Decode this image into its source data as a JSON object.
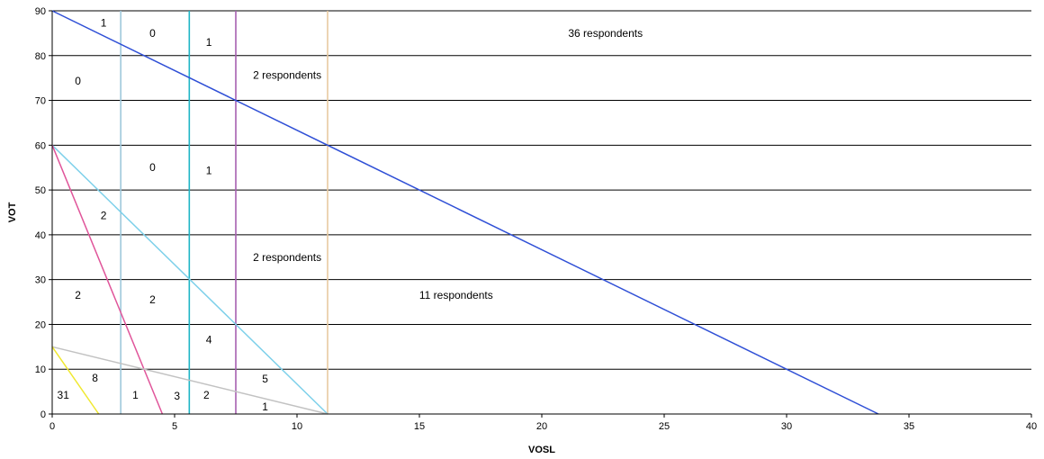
{
  "chart_data": {
    "type": "line",
    "title": "",
    "xlabel": "VOSL",
    "ylabel": "VOT",
    "xlim": [
      0,
      40
    ],
    "ylim": [
      0,
      90
    ],
    "x_ticks": [
      "0",
      "5",
      "10",
      "15",
      "20",
      "25",
      "30",
      "35",
      "40"
    ],
    "y_ticks": [
      "0",
      "10",
      "20",
      "30",
      "40",
      "50",
      "60",
      "70",
      "80",
      "90"
    ],
    "grid": "horizontal",
    "legend": "none",
    "vertical_lines": [
      {
        "x": 2.8,
        "color": "#9ec8dc"
      },
      {
        "x": 5.6,
        "color": "#1fb5c6"
      },
      {
        "x": 7.5,
        "color": "#a65fb0"
      },
      {
        "x": 11.25,
        "color": "#e8c9a0"
      }
    ],
    "series": [
      {
        "points": [
          [
            0,
            90
          ],
          [
            33.75,
            0
          ]
        ],
        "color": "#2f4fd6"
      },
      {
        "points": [
          [
            0,
            60
          ],
          [
            11.25,
            0
          ]
        ],
        "color": "#7dd0ea"
      },
      {
        "points": [
          [
            0,
            60
          ],
          [
            4.5,
            0
          ]
        ],
        "color": "#e0559a"
      },
      {
        "points": [
          [
            0,
            15
          ],
          [
            11.25,
            0
          ]
        ],
        "color": "#c2c2c2"
      },
      {
        "points": [
          [
            0,
            15
          ],
          [
            1.9,
            0
          ]
        ],
        "color": "#f0e830"
      }
    ],
    "annotations": [
      {
        "text": "1",
        "x": 2.1,
        "y": 87.3
      },
      {
        "text": "0",
        "x": 4.1,
        "y": 85.0
      },
      {
        "text": "1",
        "x": 6.4,
        "y": 83.0
      },
      {
        "text": "36 respondents",
        "x": 22.6,
        "y": 85.0
      },
      {
        "text": "2 respondents",
        "x": 9.6,
        "y": 75.6
      },
      {
        "text": "0",
        "x": 1.05,
        "y": 74.3
      },
      {
        "text": "0",
        "x": 4.1,
        "y": 55.0
      },
      {
        "text": "1",
        "x": 6.4,
        "y": 54.3
      },
      {
        "text": "2",
        "x": 2.1,
        "y": 44.3
      },
      {
        "text": "2 respondents",
        "x": 9.6,
        "y": 35.0
      },
      {
        "text": "2",
        "x": 1.05,
        "y": 26.5
      },
      {
        "text": "2",
        "x": 4.1,
        "y": 25.5
      },
      {
        "text": "11 respondents",
        "x": 16.5,
        "y": 26.5
      },
      {
        "text": "4",
        "x": 6.4,
        "y": 16.6
      },
      {
        "text": "8",
        "x": 1.75,
        "y": 8.0
      },
      {
        "text": "5",
        "x": 8.7,
        "y": 7.8
      },
      {
        "text": "31",
        "x": 0.45,
        "y": 4.2
      },
      {
        "text": "1",
        "x": 3.4,
        "y": 4.2
      },
      {
        "text": "3",
        "x": 5.1,
        "y": 4.0
      },
      {
        "text": "2",
        "x": 6.3,
        "y": 4.2
      },
      {
        "text": "1",
        "x": 8.7,
        "y": 1.6
      }
    ]
  }
}
